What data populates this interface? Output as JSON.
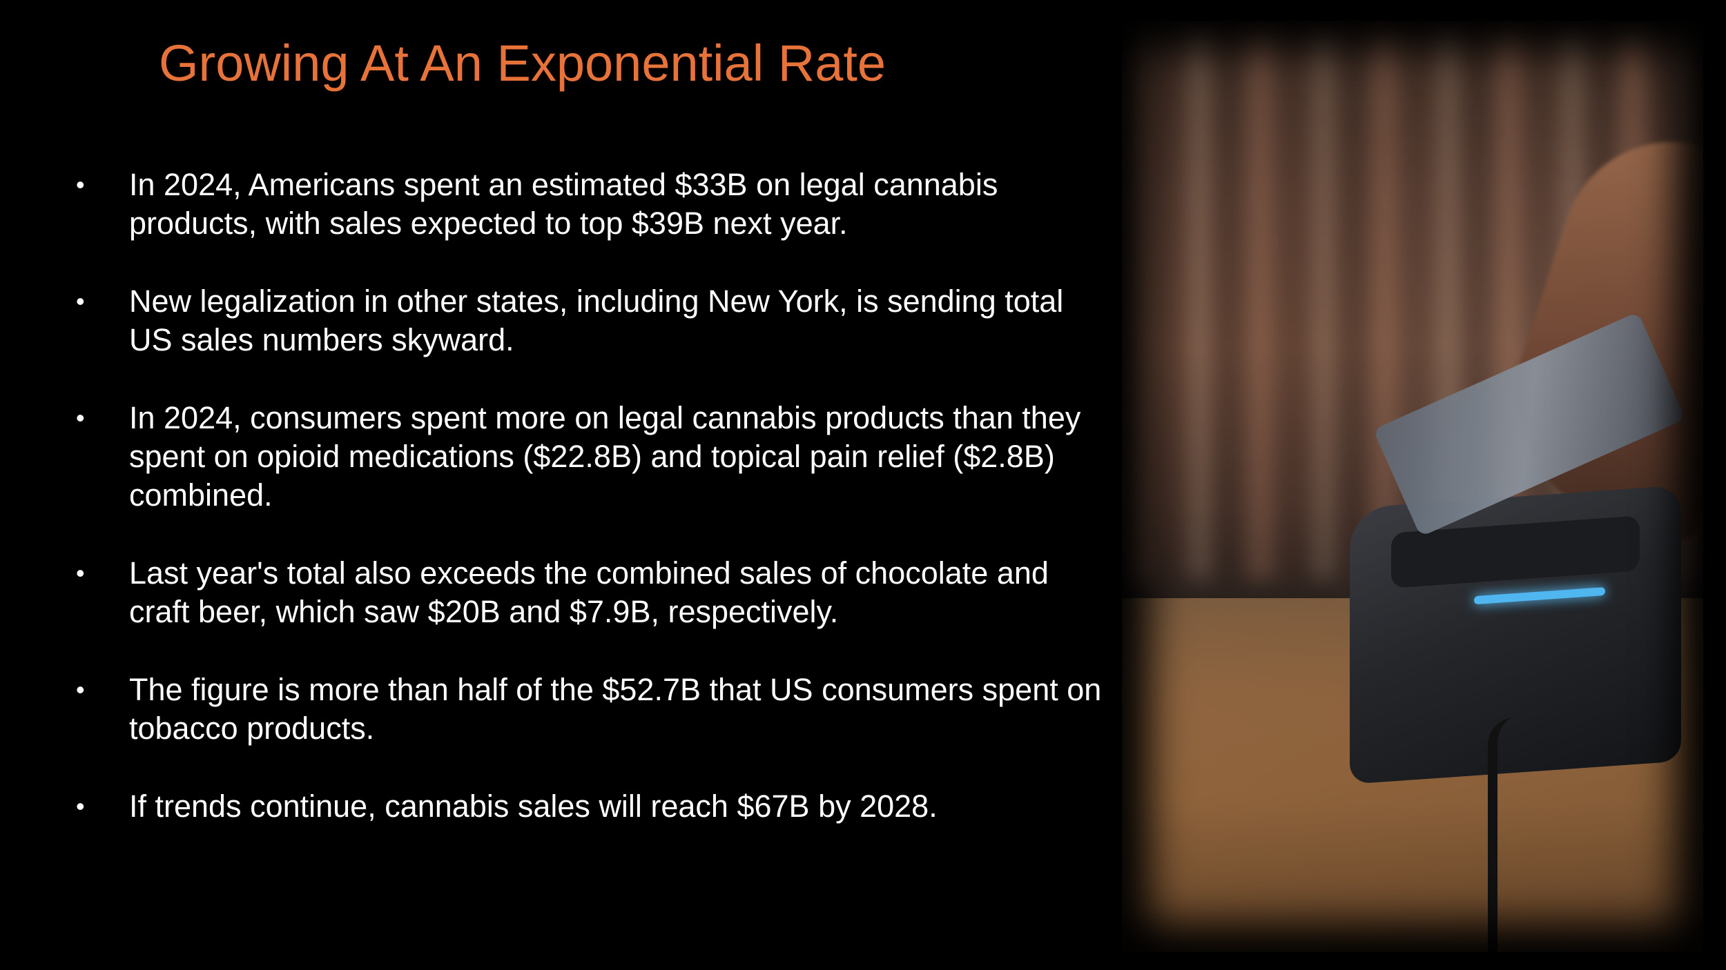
{
  "colors": {
    "background": "#000000",
    "title": "#E8733A",
    "text": "#FFFFFF"
  },
  "slide": {
    "title": "Growing At An Exponential Rate",
    "bullet_marker": "•",
    "bullets": [
      "In 2024, Americans spent an estimated $33B on legal cannabis products, with sales expected to top $39B next year.",
      "New legalization in other states, including New York, is sending total US sales numbers skyward.",
      "In 2024, consumers spent more on legal cannabis products than they spent on opioid medications ($22.8B) and topical pain relief ($2.8B) combined.",
      "Last year's total also exceeds the combined sales of chocolate and craft beer, which saw $20B and $7.9B, respectively.",
      "The figure is more than half of the $52.7B that US consumers spent on tobacco products.",
      "If trends continue, cannabis sales will reach $67B by 2028."
    ]
  },
  "photo": {
    "subject": "card-payment-terminal-photo"
  }
}
